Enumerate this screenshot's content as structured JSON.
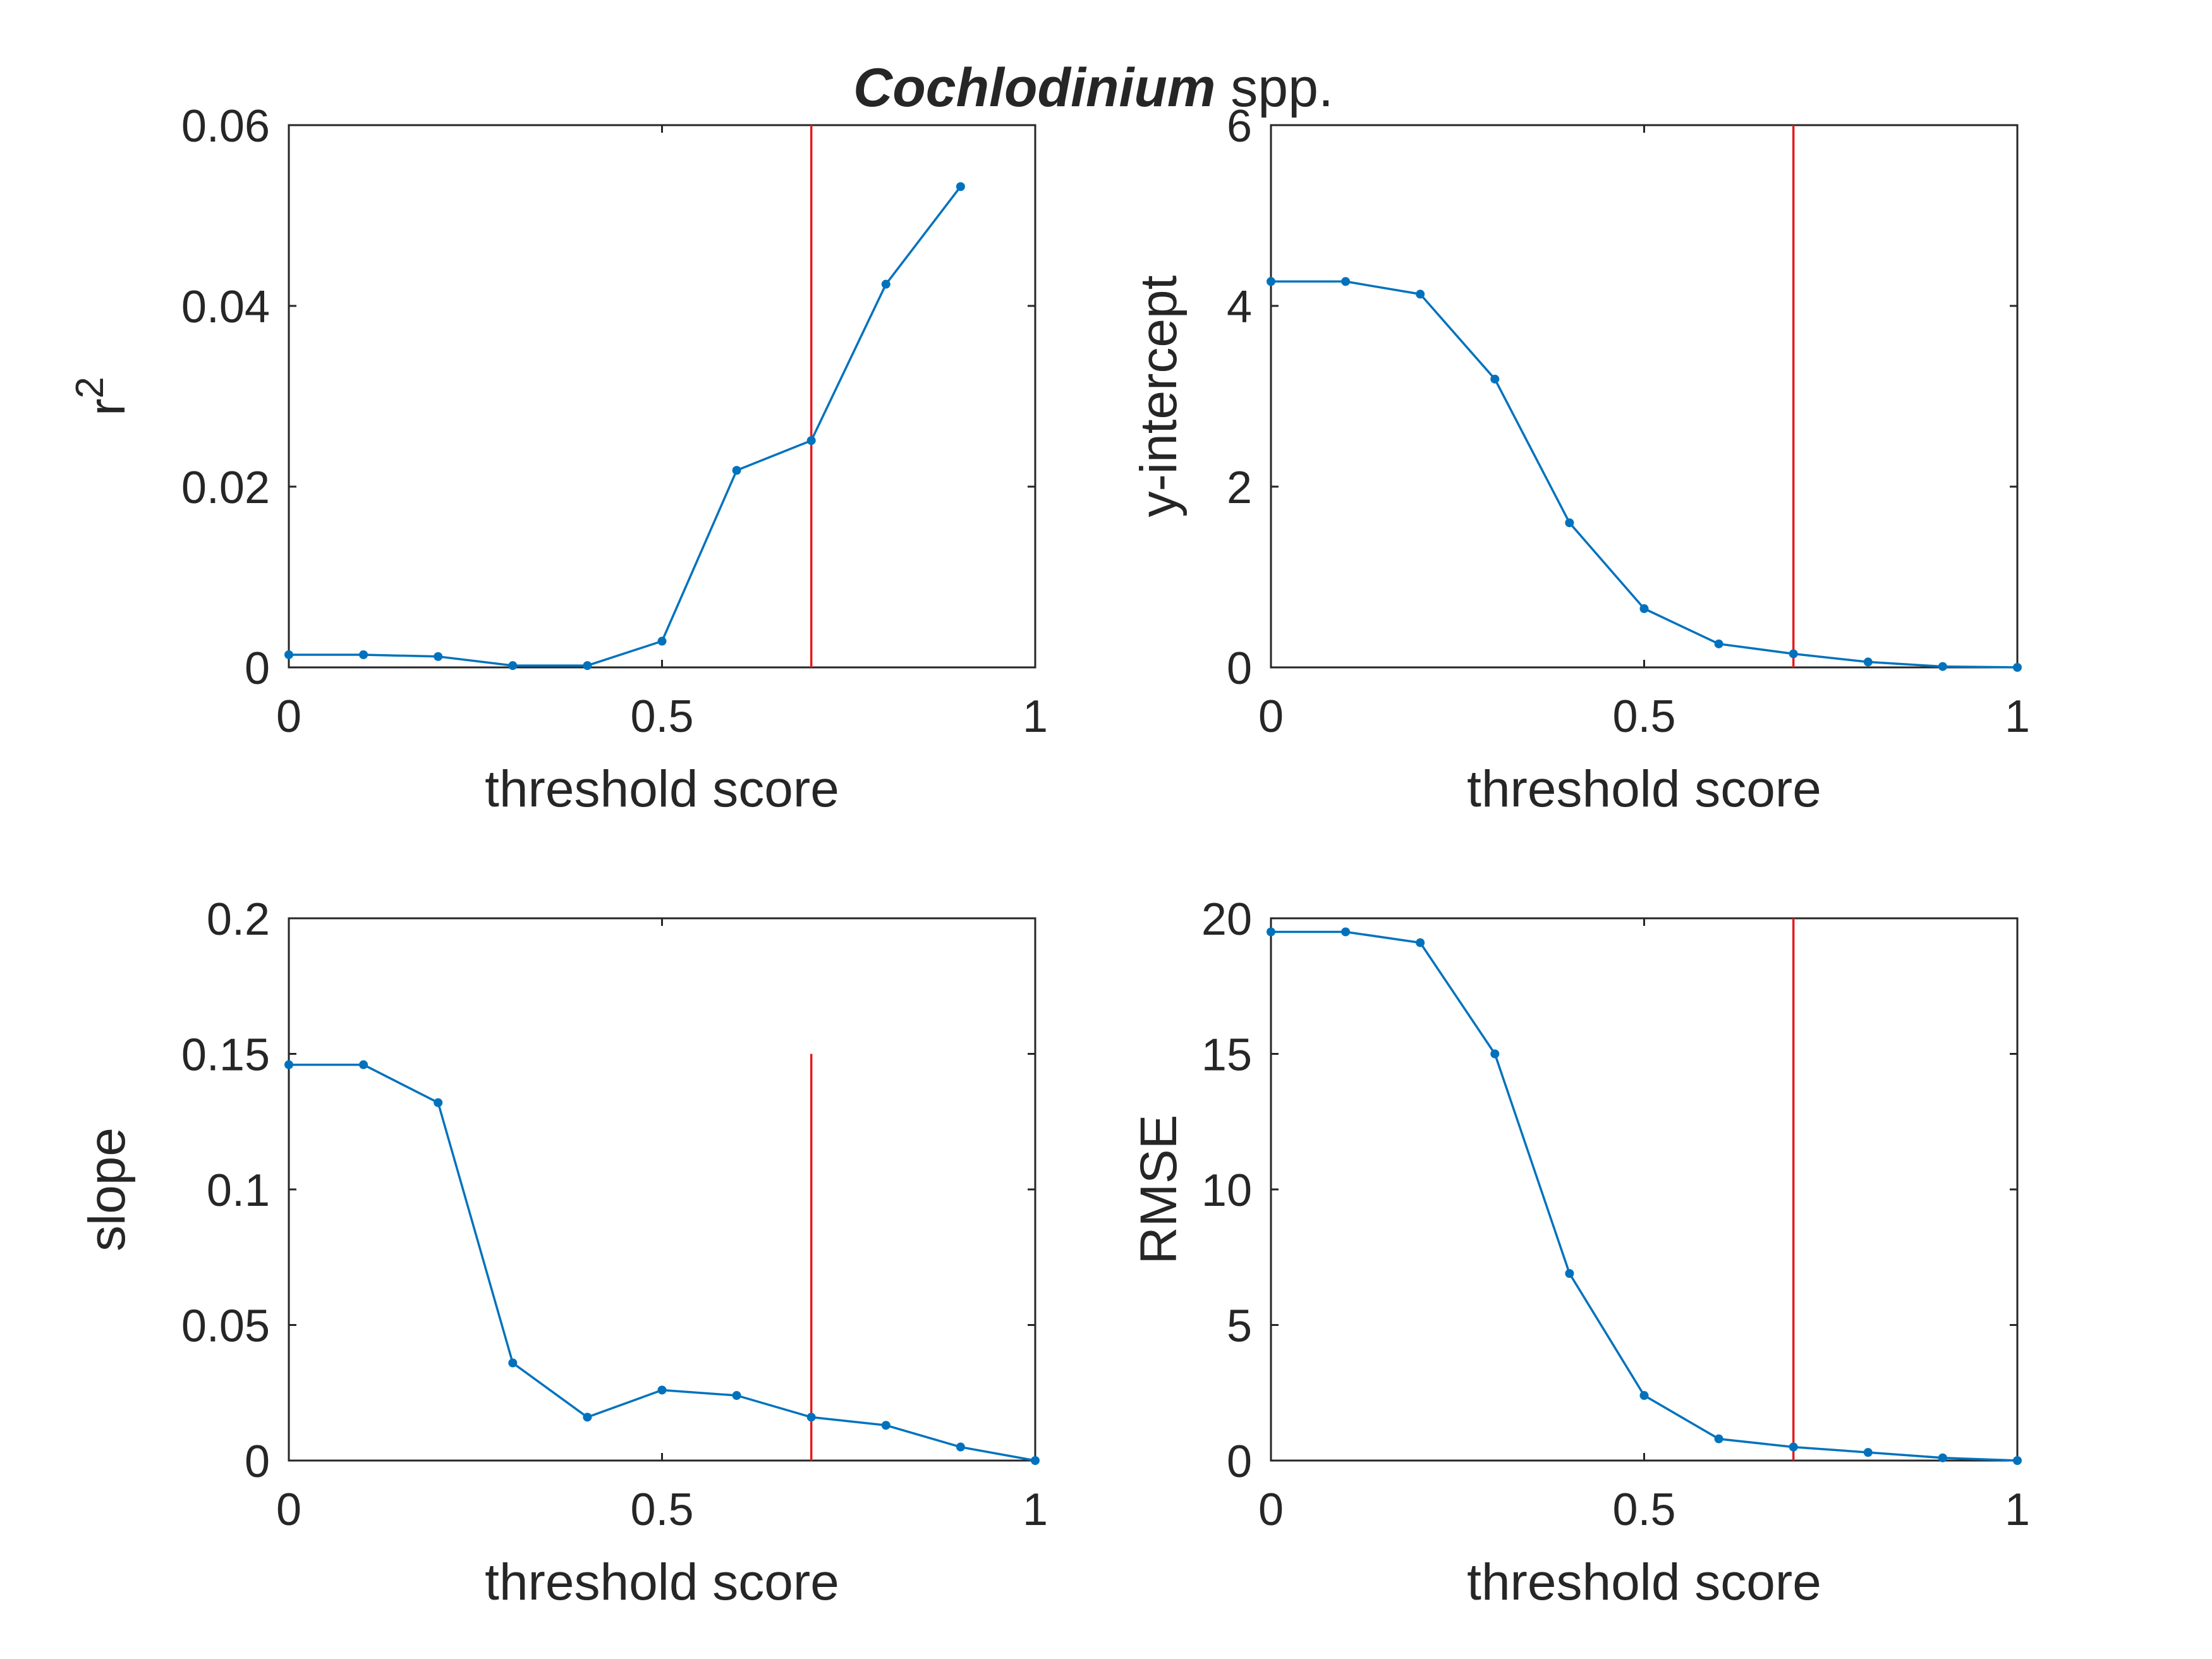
{
  "figure": {
    "title_bold_italic": "Cochlodinium",
    "title_rest": " spp."
  },
  "colors": {
    "series": "#0072BD",
    "threshold_line": "#E41A1C",
    "axes": "#262626"
  },
  "chart_data": [
    {
      "type": "line",
      "title": "",
      "xlabel": "threshold score",
      "ylabel": "r",
      "ylabel_superscript": "2",
      "xlim": [
        0,
        1
      ],
      "ylim": [
        0,
        0.06
      ],
      "xticks": [
        0,
        0.5,
        1
      ],
      "xtick_labels": [
        "0",
        "0.5",
        "1"
      ],
      "yticks": [
        0,
        0.02,
        0.04,
        0.06
      ],
      "ytick_labels": [
        "0",
        "0.02",
        "0.04",
        "0.06"
      ],
      "x": [
        0,
        0.1,
        0.2,
        0.3,
        0.4,
        0.5,
        0.6,
        0.7,
        0.8,
        0.9
      ],
      "y": [
        0.0014,
        0.0014,
        0.0012,
        0.0002,
        0.0002,
        0.0029,
        0.0218,
        0.0251,
        0.0424,
        0.0532
      ],
      "threshold_x": 0.7,
      "threshold_y_range": [
        0,
        0.06
      ],
      "grid": false,
      "legend": "none"
    },
    {
      "type": "line",
      "title": "",
      "xlabel": "threshold score",
      "ylabel": "y-intercept",
      "xlim": [
        0,
        1
      ],
      "ylim": [
        0,
        6
      ],
      "xticks": [
        0,
        0.5,
        1
      ],
      "xtick_labels": [
        "0",
        "0.5",
        "1"
      ],
      "yticks": [
        0,
        2,
        4,
        6
      ],
      "ytick_labels": [
        "0",
        "2",
        "4",
        "6"
      ],
      "x": [
        0,
        0.1,
        0.2,
        0.3,
        0.4,
        0.5,
        0.6,
        0.7,
        0.8,
        0.9,
        1.0
      ],
      "y": [
        4.27,
        4.27,
        4.13,
        3.19,
        1.6,
        0.65,
        0.26,
        0.15,
        0.06,
        0.01,
        0.0
      ],
      "threshold_x": 0.7,
      "threshold_y_range": [
        0,
        6
      ],
      "grid": false,
      "legend": "none"
    },
    {
      "type": "line",
      "title": "",
      "xlabel": "threshold score",
      "ylabel": "slope",
      "xlim": [
        0,
        1
      ],
      "ylim": [
        0,
        0.2
      ],
      "xticks": [
        0,
        0.5,
        1
      ],
      "xtick_labels": [
        "0",
        "0.5",
        "1"
      ],
      "yticks": [
        0,
        0.05,
        0.1,
        0.15,
        0.2
      ],
      "ytick_labels": [
        "0",
        "0.05",
        "0.1",
        "0.15",
        "0.2"
      ],
      "x": [
        0,
        0.1,
        0.2,
        0.3,
        0.4,
        0.5,
        0.6,
        0.7,
        0.8,
        0.9,
        1.0
      ],
      "y": [
        0.146,
        0.146,
        0.132,
        0.036,
        0.016,
        0.026,
        0.024,
        0.016,
        0.013,
        0.005,
        0.0
      ],
      "threshold_x": 0.7,
      "threshold_y_range": [
        0,
        0.15
      ],
      "grid": false,
      "legend": "none"
    },
    {
      "type": "line",
      "title": "",
      "xlabel": "threshold score",
      "ylabel": "RMSE",
      "xlim": [
        0,
        1
      ],
      "ylim": [
        0,
        20
      ],
      "xticks": [
        0,
        0.5,
        1
      ],
      "xtick_labels": [
        "0",
        "0.5",
        "1"
      ],
      "yticks": [
        0,
        5,
        10,
        15,
        20
      ],
      "ytick_labels": [
        "0",
        "5",
        "10",
        "15",
        "20"
      ],
      "x": [
        0,
        0.1,
        0.2,
        0.3,
        0.4,
        0.5,
        0.6,
        0.7,
        0.8,
        0.9,
        1.0
      ],
      "y": [
        19.5,
        19.5,
        19.1,
        15.0,
        6.9,
        2.4,
        0.8,
        0.5,
        0.3,
        0.1,
        0.0
      ],
      "threshold_x": 0.7,
      "threshold_y_range": [
        0,
        20
      ],
      "grid": false,
      "legend": "none"
    }
  ]
}
